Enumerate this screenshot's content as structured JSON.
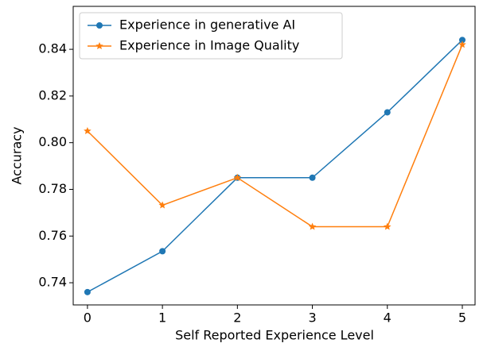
{
  "chart_data": {
    "type": "line",
    "xlabel": "Self Reported Experience Level",
    "ylabel": "Accuracy",
    "x": [
      0,
      1,
      2,
      3,
      4,
      5
    ],
    "series": [
      {
        "name": "Experience in generative AI",
        "color": "#1f77b4",
        "marker": "circle",
        "values": [
          0.736,
          0.7535,
          0.785,
          0.785,
          0.813,
          0.844
        ]
      },
      {
        "name": "Experience in Image Quality",
        "color": "#ff7f0e",
        "marker": "star",
        "values": [
          0.805,
          0.7732,
          0.785,
          0.764,
          0.764,
          0.842
        ]
      }
    ],
    "xlim": [
      -0.19,
      5.17
    ],
    "ylim": [
      0.7305,
      0.8584
    ],
    "xticks": [
      0,
      1,
      2,
      3,
      4,
      5
    ],
    "yticks": [
      0.74,
      0.76,
      0.78,
      0.8,
      0.82,
      0.84
    ],
    "ytick_labels": [
      "0.74",
      "0.76",
      "0.78",
      "0.80",
      "0.82",
      "0.84"
    ],
    "legend": "upper left"
  }
}
